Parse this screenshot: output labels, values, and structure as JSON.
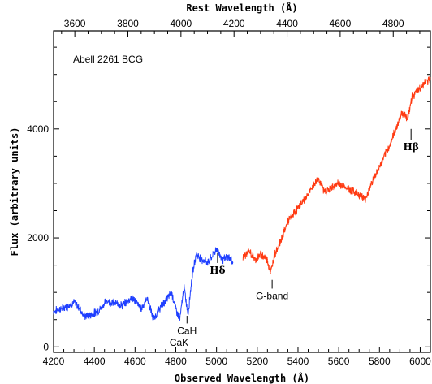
{
  "chart_data": {
    "type": "line",
    "title": "Abell 2261 BCG",
    "xlabel": "Observed Wavelength (Å)",
    "ylabel": "Flux (arbitrary units)",
    "x2label": "Rest Wavelength (Å)",
    "xlim": [
      4200,
      6050
    ],
    "ylim": [
      -100,
      5800
    ],
    "xticks": [
      4200,
      4400,
      4600,
      4800,
      5000,
      5200,
      5400,
      5600,
      5800,
      6000
    ],
    "yticks": [
      0,
      2000,
      4000
    ],
    "x2lim": [
      3520,
      4940
    ],
    "x2ticks": [
      3600,
      3800,
      4000,
      4200,
      4400,
      4600,
      4800
    ],
    "series": [
      {
        "color": "#1f3fff",
        "x": [
          4200,
          4250,
          4300,
          4330,
          4350,
          4380,
          4400,
          4430,
          4460,
          4500,
          4540,
          4580,
          4600,
          4630,
          4660,
          4690,
          4720,
          4750,
          4780,
          4800,
          4820,
          4840,
          4860,
          4880,
          4900,
          4930,
          4960,
          5000,
          5030,
          5060,
          5080
        ],
        "y": [
          650,
          720,
          820,
          700,
          560,
          580,
          620,
          700,
          850,
          800,
          760,
          900,
          850,
          700,
          900,
          500,
          700,
          850,
          1000,
          700,
          500,
          1100,
          600,
          1300,
          1700,
          1600,
          1550,
          1800,
          1600,
          1650,
          1550
        ]
      },
      {
        "color": "#ff3a12",
        "x": [
          5130,
          5160,
          5190,
          5220,
          5250,
          5265,
          5285,
          5310,
          5350,
          5400,
          5450,
          5500,
          5530,
          5560,
          5600,
          5650,
          5700,
          5730,
          5760,
          5800,
          5850,
          5880,
          5910,
          5940,
          5960,
          5990,
          6020,
          6050
        ],
        "y": [
          1650,
          1750,
          1600,
          1700,
          1600,
          1350,
          1700,
          1900,
          2300,
          2550,
          2800,
          3100,
          2850,
          2900,
          3000,
          2900,
          2800,
          2700,
          3000,
          3300,
          3700,
          4000,
          4300,
          4200,
          4600,
          4700,
          4850,
          4900
        ]
      }
    ],
    "annotations": [
      {
        "label": "CaK",
        "x": 4816,
        "y_tick_top": 420,
        "y_tick_bottom": 210
      },
      {
        "label": "CaH",
        "x": 4855,
        "y_tick_top": 570,
        "y_tick_bottom": 430
      },
      {
        "label": "Hδ",
        "x": 5005,
        "y_tick_top": 1720,
        "y_tick_bottom": 1540
      },
      {
        "label": "G-band",
        "x": 5273,
        "y_tick_top": 1230,
        "y_tick_bottom": 1070
      },
      {
        "label": "Hβ",
        "x": 5955,
        "y_tick_top": 4000,
        "y_tick_bottom": 3800
      }
    ]
  }
}
